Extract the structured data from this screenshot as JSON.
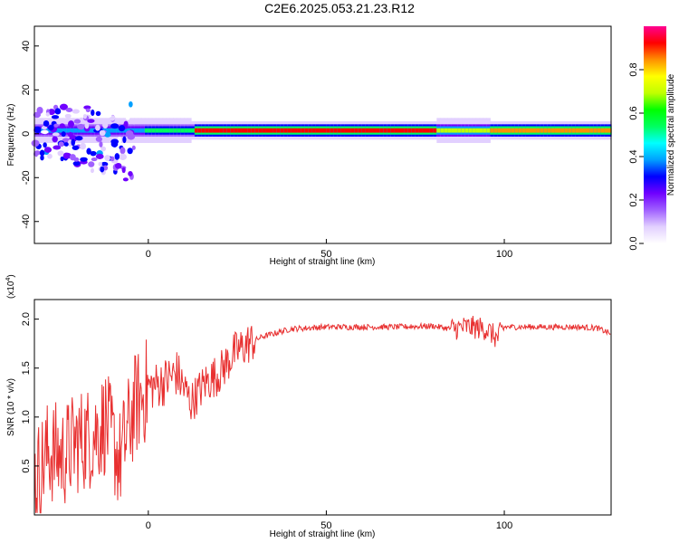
{
  "title": "C2E6.2025.053.21.23.R12",
  "colors": {
    "snr_line": "#e83030",
    "background": "#ffffff",
    "axis": "#000000",
    "colormap": [
      "#ffffff",
      "#e2d0ff",
      "#a060ff",
      "#7000ff",
      "#0000ff",
      "#00a0ff",
      "#00ffff",
      "#00ff60",
      "#00ff00",
      "#c0ff00",
      "#ffff00",
      "#ff9000",
      "#ff0000",
      "#ff0090"
    ]
  },
  "chart_data": [
    {
      "type": "heatmap",
      "xlabel": "Height of straight line (km)",
      "ylabel": "Frequency (Hz)",
      "xlim": [
        -32,
        130
      ],
      "ylim": [
        -50,
        49
      ],
      "xticks": [
        "0",
        "50",
        "100"
      ],
      "xtick_values": [
        0,
        50,
        100
      ],
      "yticks": [
        "-40",
        "-20",
        "0",
        "20",
        "40"
      ],
      "ytick_values": [
        -40,
        -20,
        0,
        20,
        40
      ],
      "colorbar": {
        "label": "Normalized spectral amplitude",
        "range": [
          0,
          1
        ],
        "ticks": [
          "0.0",
          "0.2",
          "0.4",
          "0.6",
          "0.8"
        ],
        "tick_values": [
          0.0,
          0.2,
          0.4,
          0.6,
          0.8
        ]
      },
      "dominant_frequency_hz": 1.5,
      "band_amplitude": [
        {
          "x_range": [
            -32,
            -2
          ],
          "amplitude": 0.45
        },
        {
          "x_range": [
            -2,
            12
          ],
          "amplitude": 0.6
        },
        {
          "x_range": [
            12,
            80
          ],
          "amplitude": 0.95
        },
        {
          "x_range": [
            80,
            95
          ],
          "amplitude": 0.75
        },
        {
          "x_range": [
            95,
            130
          ],
          "amplitude": 0.92
        }
      ],
      "grid": false
    },
    {
      "type": "line",
      "xlabel": "Height of straight line (km)",
      "ylabel": "SNR (10 * v/v)",
      "y_multiplier": "(x10",
      "y_multiplier_exp": "4",
      "y_multiplier_close": ")",
      "xlim": [
        -32,
        130
      ],
      "ylim": [
        0,
        2.2
      ],
      "xticks": [
        "0",
        "50",
        "100"
      ],
      "xtick_values": [
        0,
        50,
        100
      ],
      "yticks": [
        "0.5",
        "1.0",
        "1.5",
        "2.0"
      ],
      "ytick_values": [
        0.5,
        1.0,
        1.5,
        2.0
      ],
      "series": [
        {
          "x": [
            -32,
            -28,
            -24,
            -20,
            -16,
            -12,
            -8,
            -4,
            0,
            4,
            8,
            12,
            16,
            20,
            24,
            28,
            32,
            40,
            50,
            60,
            70,
            80,
            85,
            90,
            95,
            98,
            100,
            110,
            120,
            126,
            130
          ],
          "y": [
            0.35,
            0.65,
            0.6,
            0.75,
            0.8,
            0.95,
            0.55,
            1.1,
            1.3,
            1.35,
            1.45,
            1.15,
            1.35,
            1.45,
            1.65,
            1.75,
            1.82,
            1.9,
            1.92,
            1.92,
            1.92,
            1.93,
            1.9,
            1.92,
            1.9,
            1.8,
            1.92,
            1.92,
            1.92,
            1.91,
            1.85
          ]
        }
      ],
      "grid": false
    }
  ]
}
